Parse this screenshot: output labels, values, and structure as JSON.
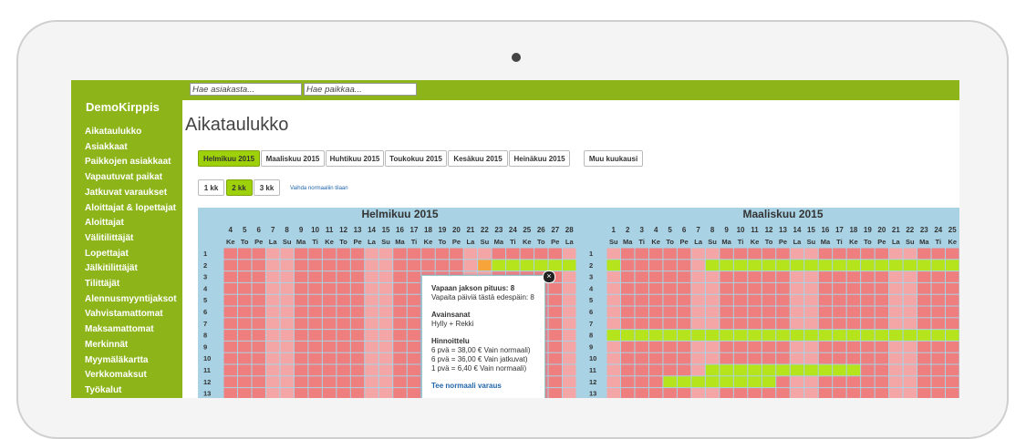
{
  "sidebar": {
    "brand": "DemoKirppis",
    "items": [
      "Aikataulukko",
      "Asiakkaat",
      "Paikkojen asiakkaat",
      "Vapautuvat paikat",
      "Jatkuvat varaukset",
      "Aloittajat & lopettajat",
      "Aloittajat",
      "Välitilittäjät",
      "Lopettajat",
      "Jälkitilittäjät",
      "Tilittäjät",
      "Alennusmyyntijaksot",
      "Vahvistamattomat",
      "Maksamattomat",
      "Merkinnät",
      "Myymäläkartta",
      "Verkkomaksut",
      "Työkalut"
    ]
  },
  "search": {
    "customer": "Hae asiakasta...",
    "place": "Hae paikkaa..."
  },
  "page": {
    "title": "Aikataulukko"
  },
  "month_tabs": [
    "Helmikuu 2015",
    "Maaliskuu 2015",
    "Huhtikuu 2015",
    "Toukokuu 2015",
    "Kesäkuu 2015",
    "Heinäkuu 2015"
  ],
  "other_month": "Muu kuukausi",
  "view_buttons": [
    "1 kk",
    "2 kk",
    "3 kk"
  ],
  "mode_link": "Vaihda normaaliin tilaan",
  "calendar": {
    "rows": [
      1,
      2,
      3,
      4,
      5,
      6,
      7,
      8,
      9,
      10,
      11,
      12,
      13
    ],
    "months": [
      {
        "name": "Helmikuu 2015",
        "days": [
          4,
          5,
          6,
          7,
          8,
          9,
          10,
          11,
          12,
          13,
          14,
          15,
          16,
          17,
          18,
          19,
          20,
          21,
          22,
          23,
          24,
          25,
          26,
          27,
          28
        ],
        "weekdays": [
          "Ke",
          "To",
          "Pe",
          "La",
          "Su",
          "Ma",
          "Ti",
          "Ke",
          "To",
          "Pe",
          "La",
          "Su",
          "Ma",
          "Ti",
          "Ke",
          "To",
          "Pe",
          "La",
          "Su",
          "Ma",
          "Ti",
          "Ke",
          "To",
          "Pe",
          "La"
        ]
      },
      {
        "name": "Maaliskuu 2015",
        "days": [
          1,
          2,
          3,
          4,
          5,
          6,
          7,
          8,
          9,
          10,
          11,
          12,
          13,
          14,
          15,
          16,
          17,
          18,
          19,
          20,
          21,
          22,
          23,
          24,
          25
        ],
        "weekdays": [
          "Su",
          "Ma",
          "Ti",
          "Ke",
          "To",
          "Pe",
          "La",
          "Su",
          "Ma",
          "Ti",
          "Ke",
          "To",
          "Pe",
          "La",
          "Su",
          "Ma",
          "Ti",
          "Ke",
          "To",
          "Pe",
          "La",
          "Su",
          "Ma",
          "Ti",
          "Ke"
        ]
      }
    ]
  },
  "tooltip": {
    "length": "Vapaan jakson pituus: 8",
    "free_days": "Vapaita päiviä tästä edespäin: 8",
    "keywords_title": "Avainsanat",
    "keywords": "Hylly + Rekki",
    "pricing_title": "Hinnoittelu",
    "prices": [
      "6 pvä = 38,00 € Vain normaali)",
      "6 pvä = 36,00 € Vain jatkuvat)",
      "1 pvä = 6,40 € Vain normaali)"
    ],
    "action": "Tee normaali varaus"
  }
}
